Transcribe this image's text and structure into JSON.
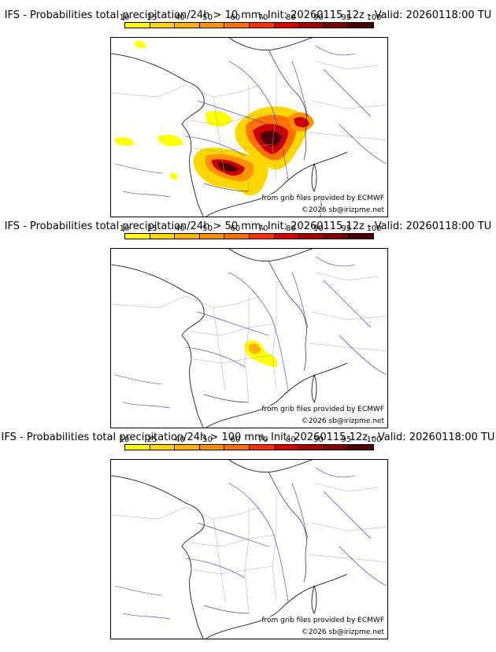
{
  "colorbar": {
    "ticks": [
      "10",
      "25",
      "40",
      "50",
      "60",
      "70",
      "80",
      "90",
      "95",
      "100"
    ],
    "colors": [
      "#ffff00",
      "#ffd700",
      "#ffb000",
      "#ff9000",
      "#ff7000",
      "#ff3000",
      "#dd0000",
      "#aa0000",
      "#800000",
      "#500000"
    ]
  },
  "panels": [
    {
      "title": "IFS - Probabilities total precipitation/24h > 10 mm, Init: 20260115 12z - Valid: 20260118:00 TU",
      "credit_source": "from grib files provided by ECMWF",
      "credit_copyright": "©2026 sb@irizpme.net",
      "threshold_mm": 10,
      "features": [
        "rain probability over southwest France (Aquitaine) peaking >90%",
        "rain probability over Rhône valley / Alps peaking >90%",
        "scattered yellow areas over Brittany and central France"
      ]
    },
    {
      "title": "IFS - Probabilities total precipitation/24h > 50 mm, Init: 20260115 12z - Valid: 20260118:00 TU",
      "credit_source": "from grib files provided by ECMWF",
      "credit_copyright": "©2026 sb@irizpme.net",
      "threshold_mm": 50,
      "features": [
        "small yellow/orange area near the Rhône delta"
      ]
    },
    {
      "title": "IFS - Probabilities total precipitation/24h > 100 mm, Init: 20260115 12z - Valid: 20260118:00 TU",
      "credit_source": "from grib files provided by ECMWF",
      "credit_copyright": "©2026 sb@irizpme.net",
      "threshold_mm": 100,
      "features": []
    }
  ]
}
